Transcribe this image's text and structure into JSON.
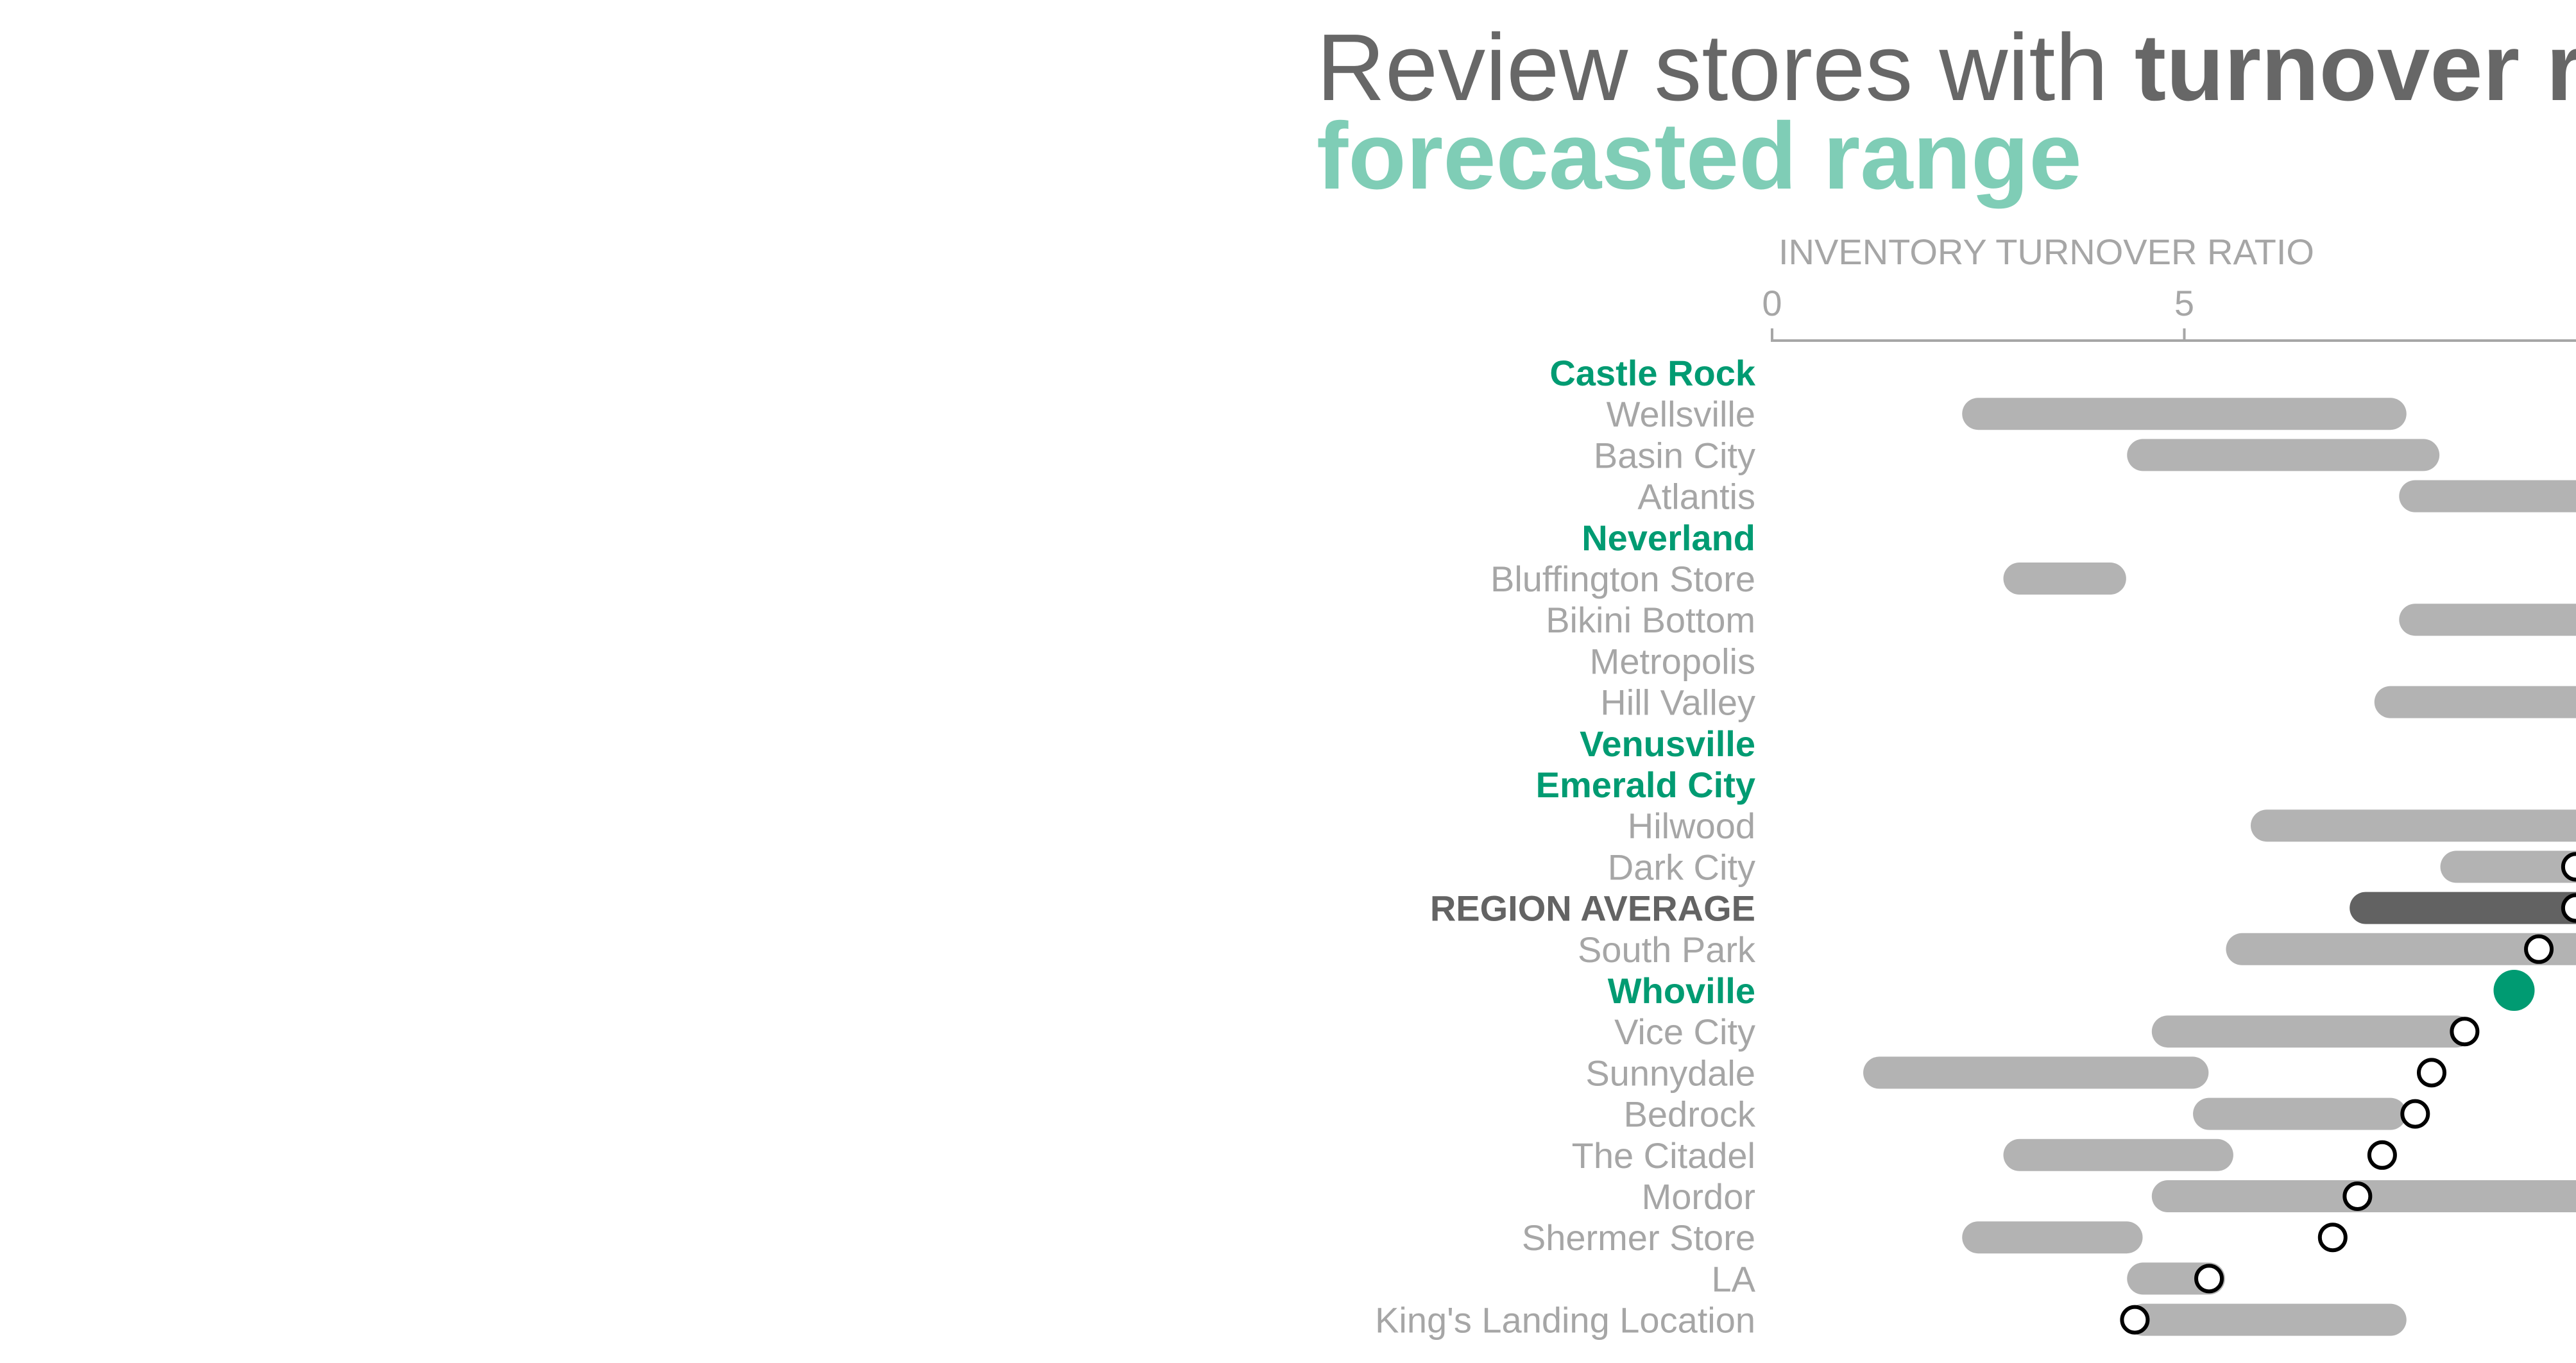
{
  "title": {
    "part1": "Review stores with ",
    "part2": "turnover ra",
    "line2": "forecasted range"
  },
  "chart_data": {
    "type": "dot-range",
    "axis_title": "INVENTORY TURNOVER RATIO",
    "x_ticks": [
      0,
      5
    ],
    "colors": {
      "highlight": "#009b72",
      "range": "#b3b3b3",
      "average_range": "#626262",
      "label": "#a6a6a6",
      "average_label": "#636363"
    },
    "rows": [
      {
        "label": "Castle Rock",
        "style": "highlight",
        "range": null,
        "value": null
      },
      {
        "label": "Wellsville",
        "style": "normal",
        "range": [
          2.5,
          7.5
        ],
        "value": null
      },
      {
        "label": "Basin City",
        "style": "normal",
        "range": [
          4.5,
          7.9
        ],
        "value": null
      },
      {
        "label": "Atlantis",
        "style": "normal",
        "range": [
          7.8,
          9.9
        ],
        "value": null
      },
      {
        "label": "Neverland",
        "style": "highlight",
        "range": null,
        "value": null
      },
      {
        "label": "Bluffington  Store",
        "style": "normal",
        "range": [
          3.0,
          4.1
        ],
        "value": null
      },
      {
        "label": "Bikini Bottom",
        "style": "normal",
        "range": [
          7.8,
          9.9
        ],
        "value": null
      },
      {
        "label": "Metropolis",
        "style": "normal",
        "range": null,
        "value": null
      },
      {
        "label": "Hill Valley",
        "style": "normal",
        "range": [
          7.5,
          9.9
        ],
        "value": null
      },
      {
        "label": "Venusville",
        "style": "highlight",
        "range": null,
        "value": null
      },
      {
        "label": "Emerald City",
        "style": "highlight",
        "range": null,
        "value": null
      },
      {
        "label": "Hilwood",
        "style": "normal",
        "range": [
          6.0,
          9.9
        ],
        "value": null
      },
      {
        "label": "Dark City",
        "style": "normal",
        "range": [
          8.3,
          9.9
        ],
        "value": 9.75
      },
      {
        "label": "REGION AVERAGE",
        "style": "average",
        "range": [
          7.2,
          9.9
        ],
        "value": 9.75
      },
      {
        "label": "South Park",
        "style": "normal",
        "range": [
          5.7,
          9.9
        ],
        "value": 9.3
      },
      {
        "label": "Whoville",
        "style": "highlight",
        "range": null,
        "value": 9.0
      },
      {
        "label": "Vice City",
        "style": "normal",
        "range": [
          4.8,
          8.3
        ],
        "value": 8.4
      },
      {
        "label": "Sunnydale",
        "style": "normal",
        "range": [
          1.3,
          5.1
        ],
        "value": 8.0
      },
      {
        "label": "Bedrock",
        "style": "normal",
        "range": [
          5.3,
          7.5
        ],
        "value": 7.8
      },
      {
        "label": "The Citadel",
        "style": "normal",
        "range": [
          3.0,
          5.4
        ],
        "value": 7.4
      },
      {
        "label": "Mordor",
        "style": "normal",
        "range": [
          4.8,
          9.9
        ],
        "value": 7.1
      },
      {
        "label": "Shermer Store",
        "style": "normal",
        "range": [
          2.5,
          4.3
        ],
        "value": 6.8
      },
      {
        "label": "LA",
        "style": "normal",
        "range": [
          4.5,
          5.3
        ],
        "value": 5.3
      },
      {
        "label": "King's Landing  Location",
        "style": "normal",
        "range": [
          4.5,
          7.5
        ],
        "value": 4.4
      }
    ]
  }
}
